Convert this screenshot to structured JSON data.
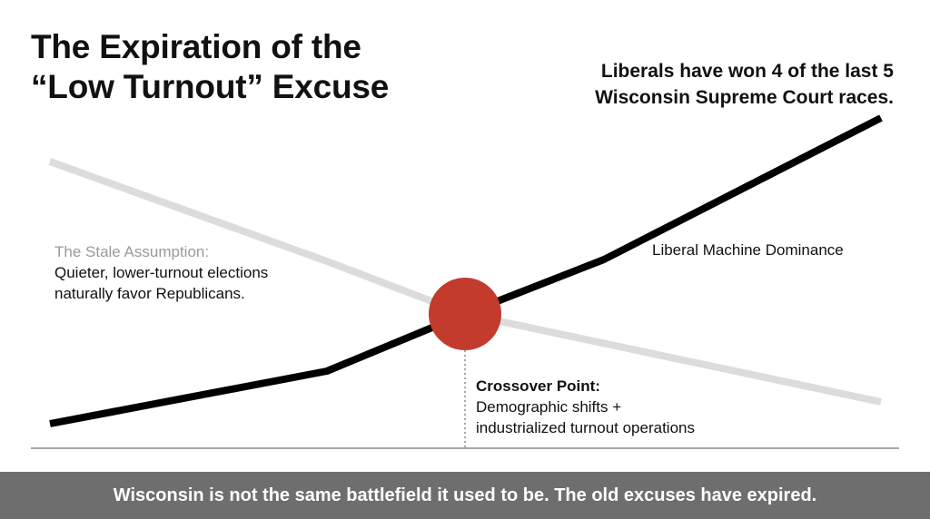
{
  "title": {
    "line1": "The Expiration of the",
    "line2": "“Low Turnout” Excuse"
  },
  "headline": {
    "line1": "Liberals have won 4 of the last 5",
    "line2": "Wisconsin Supreme Court races."
  },
  "stale_assumption": {
    "title": "The Stale Assumption:",
    "line1": "Quieter, lower-turnout elections",
    "line2": "naturally favor Republicans."
  },
  "liberal_label": "Liberal Machine Dominance",
  "crossover": {
    "title": "Crossover Point:",
    "line1": "Demographic shifts +",
    "line2": "industrialized turnout operations"
  },
  "footer": "Wisconsin is not the same battlefield it used to be. The old excuses have expired.",
  "colors": {
    "liberal_line": "#000000",
    "stale_line": "#dcdcdc",
    "crossover_marker": "#c23b2c",
    "footer_bar": "#6e6e6e",
    "stale_title_text": "#9a9a9a"
  }
}
